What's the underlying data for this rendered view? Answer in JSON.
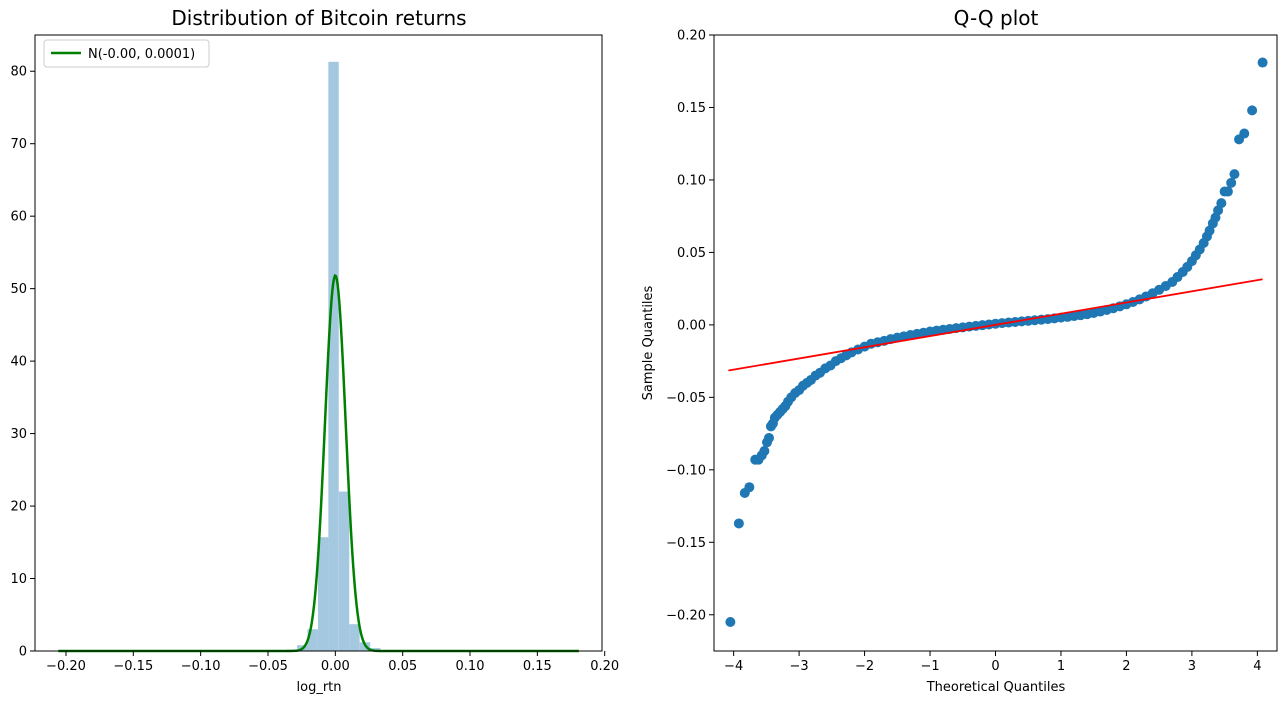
{
  "chart_data": [
    {
      "type": "bar",
      "title": "Distribution of Bitcoin returns",
      "xlabel": "log_rtn",
      "ylabel": "",
      "xlim": [
        -0.223,
        0.198
      ],
      "ylim": [
        0,
        85
      ],
      "xticks": [
        -0.2,
        -0.15,
        -0.1,
        -0.05,
        0.0,
        0.05,
        0.1,
        0.15,
        0.2
      ],
      "xtick_labels": [
        "−0.20",
        "−0.15",
        "−0.10",
        "−0.05",
        "0.00",
        "0.05",
        "0.10",
        "0.15",
        "0.20"
      ],
      "yticks": [
        0,
        10,
        20,
        30,
        40,
        50,
        60,
        70,
        80
      ],
      "ytick_labels": [
        "0",
        "10",
        "20",
        "30",
        "40",
        "50",
        "60",
        "70",
        "80"
      ],
      "bin_width": 0.00775,
      "bins": [
        {
          "x0": -0.0362,
          "height": 0.2
        },
        {
          "x0": -0.0284,
          "height": 0.8
        },
        {
          "x0": -0.0207,
          "height": 3.0
        },
        {
          "x0": -0.0129,
          "height": 15.7
        },
        {
          "x0": -0.0052,
          "height": 81.3
        },
        {
          "x0": 0.0026,
          "height": 22.0
        },
        {
          "x0": 0.0103,
          "height": 3.7
        },
        {
          "x0": 0.0181,
          "height": 1.2
        },
        {
          "x0": 0.0258,
          "height": 0.4
        }
      ],
      "bar_color": "#a5c8e1",
      "line": {
        "name": "N(-0.00, 0.0001)",
        "mean": 0.0,
        "sd": 0.0077,
        "x_range": [
          -0.2057,
          0.1808
        ],
        "color": "#008000"
      },
      "legend": {
        "position": "top-left",
        "entries": [
          "N(-0.00, 0.0001)"
        ]
      },
      "grid": false
    },
    {
      "type": "scatter",
      "title": "Q-Q plot",
      "xlabel": "Theoretical Quantiles",
      "ylabel": "Sample Quantiles",
      "xlim": [
        -4.3,
        4.3
      ],
      "ylim": [
        -0.225,
        0.2
      ],
      "xticks": [
        -4,
        -3,
        -2,
        -1,
        0,
        1,
        2,
        3,
        4
      ],
      "xtick_labels": [
        "−4",
        "−3",
        "−2",
        "−1",
        "0",
        "1",
        "2",
        "3",
        "4"
      ],
      "yticks": [
        -0.2,
        -0.15,
        -0.1,
        -0.05,
        0.0,
        0.05,
        0.1,
        0.15,
        0.2
      ],
      "ytick_labels": [
        "−0.20",
        "−0.15",
        "−0.10",
        "−0.05",
        "0.00",
        "0.05",
        "0.10",
        "0.15",
        "0.20"
      ],
      "points": [
        [
          -4.05,
          -0.205
        ],
        [
          -3.92,
          -0.137
        ],
        [
          -3.83,
          -0.116
        ],
        [
          -3.76,
          -0.112
        ],
        [
          -3.67,
          -0.093
        ],
        [
          -3.62,
          -0.093
        ],
        [
          -3.57,
          -0.09
        ],
        [
          -3.53,
          -0.087
        ],
        [
          -3.49,
          -0.081
        ],
        [
          -3.46,
          -0.078
        ],
        [
          -3.43,
          -0.07
        ],
        [
          -3.4,
          -0.068
        ],
        [
          -3.37,
          -0.064
        ],
        [
          -3.33,
          -0.062
        ],
        [
          -3.29,
          -0.06
        ],
        [
          -3.25,
          -0.058
        ],
        [
          -3.21,
          -0.056
        ],
        [
          -3.17,
          -0.053
        ],
        [
          -3.12,
          -0.05
        ],
        [
          -3.06,
          -0.047
        ],
        [
          -3.0,
          -0.045
        ],
        [
          -2.94,
          -0.042
        ],
        [
          -2.88,
          -0.04
        ],
        [
          -2.82,
          -0.038
        ],
        [
          -2.75,
          -0.035
        ],
        [
          -2.68,
          -0.033
        ],
        [
          -2.6,
          -0.03
        ],
        [
          -2.52,
          -0.028
        ],
        [
          -2.44,
          -0.025
        ],
        [
          -2.36,
          -0.023
        ],
        [
          -2.28,
          -0.021
        ],
        [
          -2.2,
          -0.019
        ],
        [
          -2.1,
          -0.017
        ],
        [
          -2.0,
          -0.015
        ],
        [
          -1.9,
          -0.013
        ],
        [
          -1.8,
          -0.012
        ],
        [
          -1.7,
          -0.011
        ],
        [
          -1.6,
          -0.0098
        ],
        [
          -1.5,
          -0.0088
        ],
        [
          -1.4,
          -0.0079
        ],
        [
          -1.3,
          -0.007
        ],
        [
          -1.2,
          -0.0062
        ],
        [
          -1.1,
          -0.0054
        ],
        [
          -1.0,
          -0.0046
        ],
        [
          -0.9,
          -0.004
        ],
        [
          -0.8,
          -0.0034
        ],
        [
          -0.7,
          -0.0028
        ],
        [
          -0.6,
          -0.0022
        ],
        [
          -0.5,
          -0.0017
        ],
        [
          -0.4,
          -0.0012
        ],
        [
          -0.3,
          -0.0007
        ],
        [
          -0.2,
          -0.0002
        ],
        [
          -0.1,
          0.0003
        ],
        [
          0.0,
          0.0008
        ],
        [
          0.1,
          0.0012
        ],
        [
          0.2,
          0.0016
        ],
        [
          0.3,
          0.002
        ],
        [
          0.4,
          0.0024
        ],
        [
          0.5,
          0.0028
        ],
        [
          0.6,
          0.0032
        ],
        [
          0.7,
          0.0036
        ],
        [
          0.8,
          0.004
        ],
        [
          0.9,
          0.0045
        ],
        [
          1.0,
          0.005
        ],
        [
          1.1,
          0.0055
        ],
        [
          1.2,
          0.0061
        ],
        [
          1.3,
          0.0067
        ],
        [
          1.4,
          0.0074
        ],
        [
          1.5,
          0.0082
        ],
        [
          1.6,
          0.0092
        ],
        [
          1.7,
          0.0103
        ],
        [
          1.8,
          0.0115
        ],
        [
          1.9,
          0.0128
        ],
        [
          2.0,
          0.0142
        ],
        [
          2.1,
          0.0158
        ],
        [
          2.2,
          0.0176
        ],
        [
          2.3,
          0.0196
        ],
        [
          2.4,
          0.0218
        ],
        [
          2.5,
          0.0242
        ],
        [
          2.6,
          0.0268
        ],
        [
          2.7,
          0.0296
        ],
        [
          2.78,
          0.033
        ],
        [
          2.86,
          0.0365
        ],
        [
          2.93,
          0.04
        ],
        [
          3.0,
          0.044
        ],
        [
          3.06,
          0.048
        ],
        [
          3.12,
          0.052
        ],
        [
          3.18,
          0.0565
        ],
        [
          3.23,
          0.061
        ],
        [
          3.27,
          0.065
        ],
        [
          3.32,
          0.07
        ],
        [
          3.36,
          0.074
        ],
        [
          3.4,
          0.079
        ],
        [
          3.45,
          0.084
        ],
        [
          3.5,
          0.092
        ],
        [
          3.55,
          0.092
        ],
        [
          3.6,
          0.098
        ],
        [
          3.65,
          0.104
        ],
        [
          3.72,
          0.128
        ],
        [
          3.8,
          0.132
        ],
        [
          3.92,
          0.148
        ],
        [
          4.08,
          0.181
        ]
      ],
      "point_color": "#1f77b4",
      "reference_line": {
        "x": [
          -4.08,
          4.08
        ],
        "y": [
          -0.0315,
          0.0315
        ],
        "color": "#ff0000"
      },
      "grid": false
    }
  ]
}
